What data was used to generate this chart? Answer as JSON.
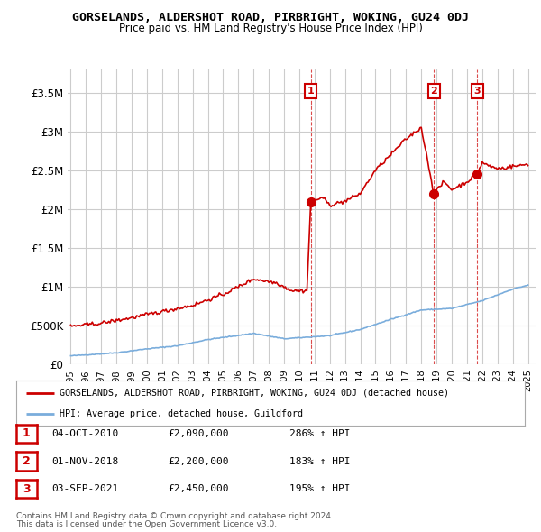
{
  "title": "GORSELANDS, ALDERSHOT ROAD, PIRBRIGHT, WOKING, GU24 0DJ",
  "subtitle": "Price paid vs. HM Land Registry's House Price Index (HPI)",
  "ylabel_ticks": [
    "£0",
    "£500K",
    "£1M",
    "£1.5M",
    "£2M",
    "£2.5M",
    "£3M",
    "£3.5M"
  ],
  "ytick_values": [
    0,
    500000,
    1000000,
    1500000,
    2000000,
    2500000,
    3000000,
    3500000
  ],
  "ylim": [
    0,
    3800000
  ],
  "xlim_start": 1994.8,
  "xlim_end": 2025.5,
  "hpi_color": "#7aaddc",
  "price_color": "#cc0000",
  "grid_color": "#cccccc",
  "background_color": "#ffffff",
  "sale_points": [
    {
      "year": 2010.75,
      "price": 2090000,
      "label": "1"
    },
    {
      "year": 2018.83,
      "price": 2200000,
      "label": "2"
    },
    {
      "year": 2021.67,
      "price": 2450000,
      "label": "3"
    }
  ],
  "sale_labels_top": [
    {
      "year": 2010.75,
      "label": "1"
    },
    {
      "year": 2018.83,
      "label": "2"
    },
    {
      "year": 2021.67,
      "label": "3"
    }
  ],
  "legend_line1": "GORSELANDS, ALDERSHOT ROAD, PIRBRIGHT, WOKING, GU24 0DJ (detached house)",
  "legend_line2": "HPI: Average price, detached house, Guildford",
  "table_rows": [
    {
      "num": "1",
      "date": "04-OCT-2010",
      "price": "£2,090,000",
      "hpi": "286% ↑ HPI"
    },
    {
      "num": "2",
      "date": "01-NOV-2018",
      "price": "£2,200,000",
      "hpi": "183% ↑ HPI"
    },
    {
      "num": "3",
      "date": "03-SEP-2021",
      "price": "£2,450,000",
      "hpi": "195% ↑ HPI"
    }
  ],
  "footnote1": "Contains HM Land Registry data © Crown copyright and database right 2024.",
  "footnote2": "This data is licensed under the Open Government Licence v3.0.",
  "dashed_line_years": [
    2010.75,
    2018.83,
    2021.67
  ]
}
